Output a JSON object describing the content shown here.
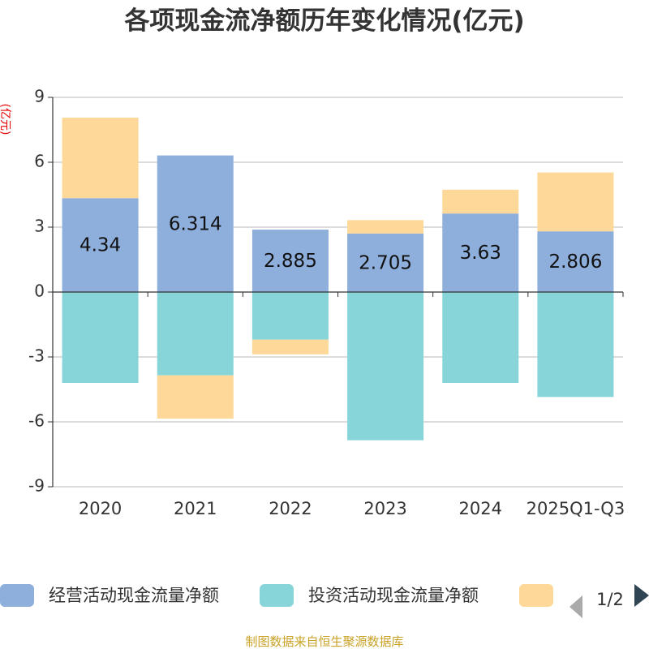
{
  "chart_data": {
    "type": "bar",
    "stacked": true,
    "title": "各项现金流净额历年变化情况(亿元)",
    "ylabel": "(亿元)",
    "xlabel": "",
    "ylim": [
      -9,
      9
    ],
    "yticks": [
      9,
      6,
      3,
      0,
      -3,
      -6,
      -9
    ],
    "categories": [
      "2020",
      "2021",
      "2022",
      "2023",
      "2024",
      "2025Q1-Q3"
    ],
    "series": [
      {
        "name": "经营活动现金流量净额",
        "color": "#8eaedb",
        "values": [
          4.34,
          6.314,
          2.885,
          2.705,
          3.63,
          2.806
        ],
        "labels": [
          "4.34",
          "6.314",
          "2.885",
          "2.705",
          "3.63",
          "2.806"
        ]
      },
      {
        "name": "投资活动现金流量净额",
        "color": "#87d5d8",
        "values": [
          -4.2,
          -3.85,
          -2.2,
          -6.85,
          -4.2,
          -4.85
        ]
      },
      {
        "name": "",
        "color": "#fed898",
        "values": [
          3.72,
          -2.0,
          -0.68,
          0.62,
          1.1,
          2.72
        ]
      }
    ],
    "legend_position": "bottom"
  },
  "legend": {
    "page": "1/2"
  },
  "source": "制图数据来自恒生聚源数据库"
}
